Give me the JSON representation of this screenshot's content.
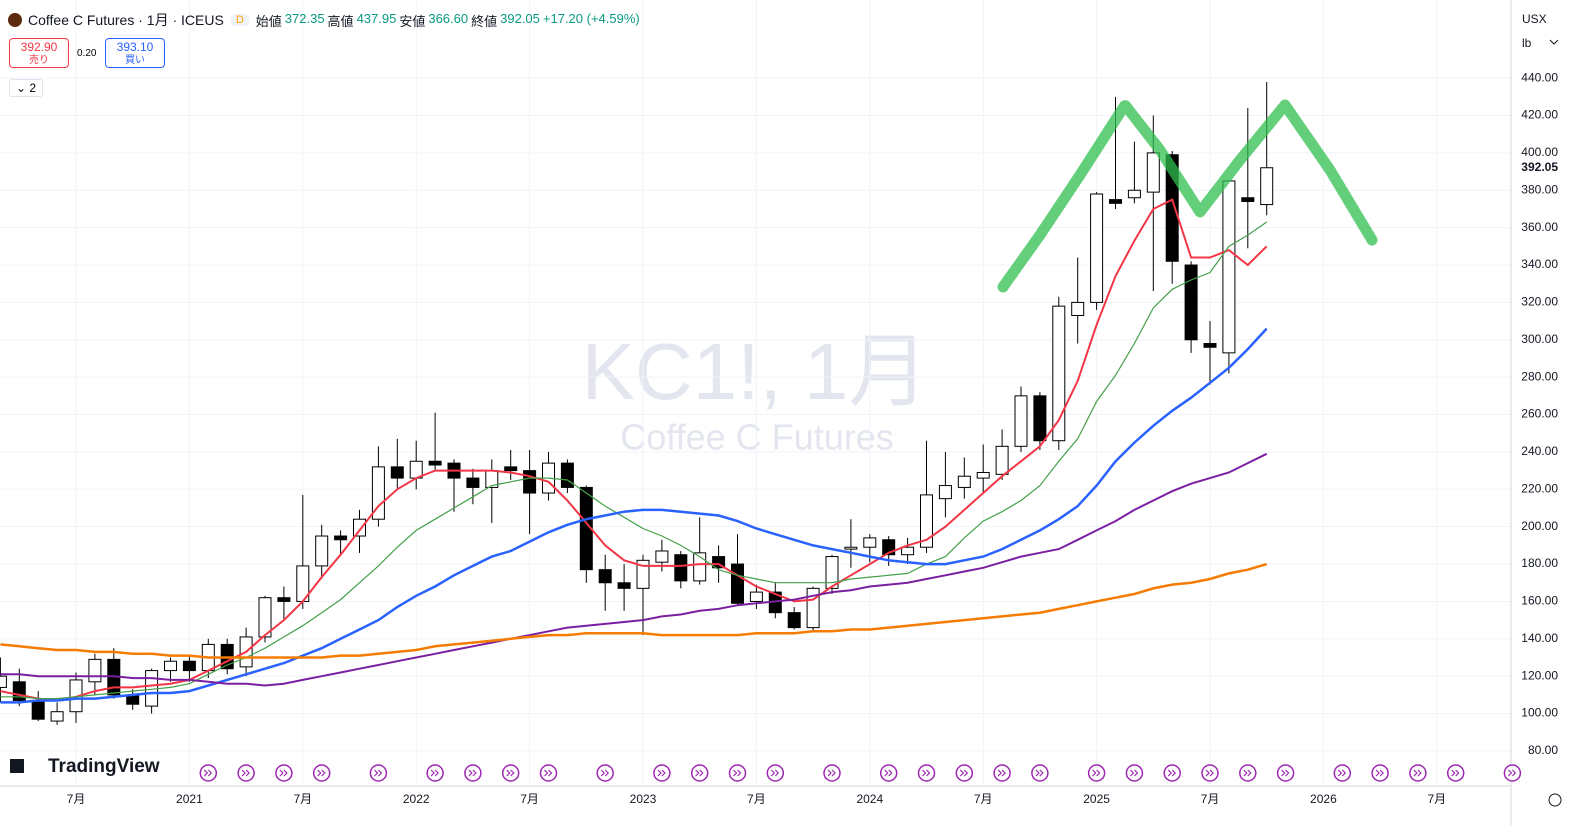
{
  "header": {
    "symbol": "Coffee C Futures · 1月 · ICEUS",
    "badge": "D",
    "open_label": "始値",
    "open": "372.35",
    "high_label": "高値",
    "high": "437.95",
    "low_label": "安値",
    "low": "366.60",
    "close_label": "終値",
    "close": "392.05",
    "change": "+17.20 (+4.59%)",
    "sell_price": "392.90",
    "sell_label": "売り",
    "spread": "0.20",
    "buy_price": "393.10",
    "buy_label": "買い",
    "indicators": "2",
    "currency": "USX",
    "unit": "lb",
    "logo": "TradingView",
    "watermark": "KC1!, 1月",
    "watermark_sub": "Coffee C Futures"
  },
  "chart_data": {
    "type": "candlestick",
    "categories": [
      "2020-03",
      "2020-04",
      "2020-05",
      "2020-06",
      "2020-07",
      "2020-08",
      "2020-09",
      "2020-10",
      "2020-11",
      "2020-12",
      "2021-01",
      "2021-02",
      "2021-03",
      "2021-04",
      "2021-05",
      "2021-06",
      "2021-07",
      "2021-08",
      "2021-09",
      "2021-10",
      "2021-11",
      "2021-12",
      "2022-01",
      "2022-02",
      "2022-03",
      "2022-04",
      "2022-05",
      "2022-06",
      "2022-07",
      "2022-08",
      "2022-09",
      "2022-10",
      "2022-11",
      "2022-12",
      "2023-01",
      "2023-02",
      "2023-03",
      "2023-04",
      "2023-05",
      "2023-06",
      "2023-07",
      "2023-08",
      "2023-09",
      "2023-10",
      "2023-11",
      "2023-12",
      "2024-01",
      "2024-02",
      "2024-03",
      "2024-04",
      "2024-05",
      "2024-06",
      "2024-07",
      "2024-08",
      "2024-09",
      "2024-10",
      "2024-11",
      "2024-12",
      "2025-01",
      "2025-02",
      "2025-03",
      "2025-04",
      "2025-05",
      "2025-06",
      "2025-07",
      "2025-08",
      "2025-09",
      "2025-10"
    ],
    "ohlc": {
      "open": [
        114,
        117,
        107,
        96,
        101,
        117,
        129,
        110,
        104,
        123,
        128,
        123,
        137,
        125,
        141,
        162,
        160,
        179,
        195,
        195,
        204,
        232,
        226,
        235,
        234,
        226,
        221,
        232,
        230,
        218,
        234,
        221,
        177,
        170,
        167,
        181,
        185,
        171,
        184,
        180,
        160,
        165,
        154,
        146,
        167,
        188,
        189,
        193,
        185,
        189,
        215,
        221,
        226,
        228,
        243,
        270,
        246,
        313,
        320,
        375,
        376,
        379,
        399,
        340,
        298,
        293,
        376,
        372.35
      ],
      "high": [
        130,
        124,
        112,
        106,
        122,
        132,
        135,
        113,
        124,
        130,
        131,
        140,
        140,
        146,
        163,
        168,
        217,
        201,
        198,
        209,
        243,
        247,
        246,
        261,
        236,
        231,
        236,
        241,
        241,
        240,
        236,
        222,
        185,
        180,
        185,
        193,
        187,
        205,
        190,
        196,
        169,
        170,
        157,
        168,
        185,
        204,
        196,
        195,
        194,
        246,
        240,
        237,
        244,
        252,
        275,
        272,
        323,
        344,
        379,
        430,
        406,
        420,
        401,
        342,
        310,
        385,
        424,
        437.95
      ],
      "low": [
        106,
        104,
        96,
        94,
        95,
        110,
        108,
        102,
        100,
        117,
        117,
        119,
        121,
        120,
        138,
        150,
        156,
        172,
        185,
        186,
        200,
        220,
        220,
        230,
        208,
        212,
        202,
        225,
        196,
        214,
        218,
        170,
        155,
        155,
        142,
        176,
        167,
        169,
        170,
        158,
        156,
        151,
        145,
        144,
        164,
        178,
        181,
        179,
        180,
        186,
        205,
        215,
        218,
        225,
        240,
        241,
        241,
        298,
        316,
        370,
        373,
        326,
        330,
        293,
        276,
        282,
        349,
        366.6
      ],
      "close": [
        120,
        107,
        97,
        101,
        118,
        129,
        110,
        105,
        123,
        128,
        123,
        137,
        124,
        141,
        162,
        160,
        179,
        195,
        193,
        204,
        232,
        226,
        235,
        233,
        226,
        221,
        230,
        230,
        218,
        234,
        221,
        177,
        170,
        167,
        182,
        187,
        171,
        186,
        178,
        159,
        165,
        154,
        146,
        167,
        184,
        189,
        194,
        185,
        189,
        217,
        222,
        227,
        229,
        243,
        270,
        246,
        318,
        320,
        378,
        373,
        380,
        400,
        342,
        300,
        296,
        385,
        374,
        392.05
      ]
    },
    "up_color": "#ffffff",
    "down_color": "#000000",
    "lines": [
      {
        "color": "#f23645",
        "width": 2,
        "values": [
          112,
          110,
          108,
          107,
          109,
          112,
          114,
          114,
          115,
          116,
          118,
          123,
          128,
          133,
          142,
          150,
          160,
          173,
          185,
          198,
          211,
          220,
          226,
          230,
          230,
          230,
          230,
          229,
          227,
          224,
          214,
          202,
          190,
          182,
          179,
          179,
          179,
          180,
          180,
          174,
          168,
          164,
          160,
          161,
          168,
          174,
          180,
          186,
          190,
          193,
          200,
          209,
          218,
          227,
          235,
          243,
          257,
          278,
          308,
          334,
          353,
          370,
          375,
          344,
          344,
          348,
          340,
          350
        ]
      },
      {
        "color": "#43a047",
        "width": 1.2,
        "values": [
          109,
          109,
          108,
          108,
          109,
          110,
          111,
          112,
          113,
          114,
          116,
          121,
          126,
          130,
          135,
          141,
          147,
          154,
          161,
          170,
          179,
          189,
          198,
          204,
          210,
          216,
          222,
          224,
          226,
          226,
          225,
          218,
          211,
          205,
          199,
          195,
          190,
          184,
          177,
          174,
          172,
          170,
          170,
          170,
          170,
          172,
          173,
          174,
          175,
          180,
          184,
          194,
          203,
          208,
          214,
          222,
          235,
          247,
          267,
          281,
          298,
          317,
          327,
          332,
          336,
          350,
          356,
          363
        ]
      },
      {
        "color": "#2962ff",
        "width": 2.5,
        "values": [
          106,
          106,
          107,
          107,
          108,
          108,
          109,
          110,
          111,
          111,
          112,
          115,
          118,
          121,
          124,
          127,
          131,
          135,
          140,
          145,
          150,
          157,
          163,
          168,
          174,
          179,
          184,
          187,
          192,
          197,
          201,
          204,
          206,
          208,
          209,
          209,
          208,
          207,
          206,
          203,
          199,
          196,
          193,
          190,
          188,
          186,
          184,
          182,
          181,
          180,
          180,
          182,
          184,
          188,
          193,
          198,
          204,
          211,
          222,
          235,
          245,
          254,
          262,
          269,
          277,
          285,
          295,
          306
        ]
      },
      {
        "color": "#7b1fa2",
        "width": 2,
        "values": [
          121,
          121,
          120,
          120,
          120,
          120,
          120,
          119,
          119,
          118,
          118,
          117,
          116,
          116,
          115,
          116,
          118,
          120,
          122,
          124,
          126,
          128,
          130,
          132,
          134,
          136,
          138,
          140,
          142,
          144,
          146,
          147,
          148,
          149,
          150,
          152,
          153,
          155,
          156,
          158,
          159,
          160,
          161,
          163,
          165,
          166,
          168,
          169,
          170,
          172,
          174,
          176,
          178,
          181,
          184,
          186,
          188,
          193,
          198,
          203,
          209,
          214,
          219,
          223,
          226,
          229,
          234,
          239
        ]
      },
      {
        "color": "#f57c00",
        "width": 2.5,
        "values": [
          137,
          136,
          135,
          134,
          134,
          133,
          133,
          132,
          132,
          131,
          131,
          130,
          130,
          130,
          130,
          130,
          130,
          130,
          131,
          131,
          132,
          133,
          134,
          136,
          137,
          138,
          139,
          140,
          141,
          142,
          142,
          143,
          143,
          143,
          143,
          142,
          142,
          142,
          142,
          142,
          143,
          143,
          143,
          144,
          144,
          145,
          145,
          146,
          147,
          148,
          149,
          150,
          151,
          152,
          153,
          154,
          156,
          158,
          160,
          162,
          164,
          167,
          169,
          170,
          172,
          175,
          177,
          180
        ]
      }
    ],
    "ylim": [
      61.25,
      481.8
    ],
    "yticks": [
      {
        "value": 80,
        "label": "80.00"
      },
      {
        "value": 100,
        "label": "100.00"
      },
      {
        "value": 120,
        "label": "120.00"
      },
      {
        "value": 140,
        "label": "140.00"
      },
      {
        "value": 160,
        "label": "160.00"
      },
      {
        "value": 180,
        "label": "180.00"
      },
      {
        "value": 200,
        "label": "200.00"
      },
      {
        "value": 220,
        "label": "220.00"
      },
      {
        "value": 240,
        "label": "240.00"
      },
      {
        "value": 260,
        "label": "260.00"
      },
      {
        "value": 280,
        "label": "280.00"
      },
      {
        "value": 300,
        "label": "300.00"
      },
      {
        "value": 320,
        "label": "320.00"
      },
      {
        "value": 340,
        "label": "340.00"
      },
      {
        "value": 360,
        "label": "360.00"
      },
      {
        "value": 380,
        "label": "380.00"
      },
      {
        "value": 400,
        "label": "400.00"
      },
      {
        "value": 420,
        "label": "420.00"
      },
      {
        "value": 440,
        "label": "440.00"
      }
    ],
    "xticks": [
      {
        "value": "2020-07",
        "label": "7月"
      },
      {
        "value": "2021-01",
        "label": "2021"
      },
      {
        "value": "2021-07",
        "label": "7月"
      },
      {
        "value": "2022-01",
        "label": "2022"
      },
      {
        "value": "2022-07",
        "label": "7月"
      },
      {
        "value": "2023-01",
        "label": "2023"
      },
      {
        "value": "2023-07",
        "label": "7月"
      },
      {
        "value": "2024-01",
        "label": "2024"
      },
      {
        "value": "2024-07",
        "label": "7月"
      },
      {
        "value": "2025-01",
        "label": "2025"
      },
      {
        "value": "2025-07",
        "label": "7月"
      },
      {
        "value": "2026-01",
        "label": "2026"
      },
      {
        "value": "2026-07",
        "label": "7月"
      }
    ],
    "grid": true
  }
}
